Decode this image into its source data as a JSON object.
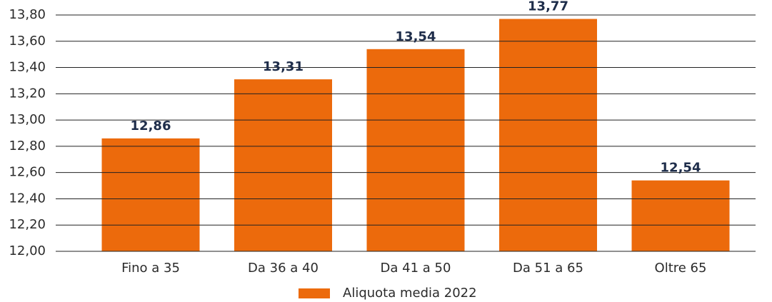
{
  "chart_data": {
    "type": "bar",
    "categories": [
      "Fino a 35",
      "Da 36 a 40",
      "Da 41 a 50",
      "Da 51 a 65",
      "Oltre 65"
    ],
    "series": [
      {
        "name": "Aliquota media 2022",
        "color": "#ec6a0c",
        "values": [
          12.86,
          13.31,
          13.54,
          13.77,
          12.54
        ],
        "value_labels": [
          "12,86",
          "13,31",
          "13,54",
          "13,77",
          "12,54"
        ]
      }
    ],
    "ylim": [
      12.0,
      13.8
    ],
    "yticks": [
      {
        "value": 12.0,
        "label": "12,00"
      },
      {
        "value": 12.2,
        "label": "12,20"
      },
      {
        "value": 12.4,
        "label": "12,40"
      },
      {
        "value": 12.6,
        "label": "12,60"
      },
      {
        "value": 12.8,
        "label": "12,80"
      },
      {
        "value": 13.0,
        "label": "13,00"
      },
      {
        "value": 13.2,
        "label": "13,20"
      },
      {
        "value": 13.4,
        "label": "13,40"
      },
      {
        "value": 13.6,
        "label": "13,60"
      },
      {
        "value": 13.8,
        "label": "13,80"
      }
    ],
    "grid": true,
    "legend": "bottom"
  }
}
